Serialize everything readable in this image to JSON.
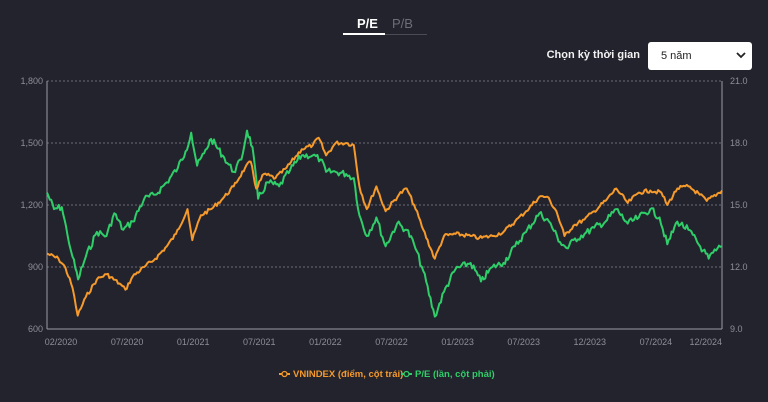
{
  "tabs": {
    "pe": "P/E",
    "pb": "P/B"
  },
  "period": {
    "label": "Chọn kỳ thời gian",
    "selected": "5 năm"
  },
  "colors": {
    "vnindex": "#f59a2b",
    "pe": "#2fce69",
    "grid": "#6a6b74",
    "background": "#22232d"
  },
  "chart_data": {
    "type": "line",
    "legend_position": "bottom",
    "grid": true,
    "x_ticks": [
      "02/2020",
      "07/2020",
      "01/2021",
      "07/2021",
      "01/2022",
      "07/2022",
      "01/2023",
      "07/2023",
      "12/2023",
      "07/2024",
      "12/2024"
    ],
    "y_left": {
      "range": [
        600,
        1800
      ],
      "ticks": [
        "600",
        "900",
        "1,200",
        "1,500",
        "1,800"
      ]
    },
    "y_right": {
      "range": [
        9.0,
        21.0
      ],
      "ticks": [
        "9.0",
        "12.0",
        "15.0",
        "18.0",
        "21.0"
      ]
    },
    "x_range": [
      "2020-01-01",
      "2024-12-31"
    ],
    "series": [
      {
        "name": "VNINDEX (điểm, cột trái)",
        "axis": "left",
        "points": [
          [
            "2020-01-01",
            965
          ],
          [
            "2020-02-01",
            940
          ],
          [
            "2020-02-20",
            895
          ],
          [
            "2020-03-10",
            800
          ],
          [
            "2020-03-24",
            665
          ],
          [
            "2020-04-15",
            755
          ],
          [
            "2020-05-15",
            840
          ],
          [
            "2020-06-10",
            865
          ],
          [
            "2020-07-15",
            820
          ],
          [
            "2020-07-31",
            790
          ],
          [
            "2020-08-20",
            855
          ],
          [
            "2020-09-20",
            900
          ],
          [
            "2020-10-20",
            940
          ],
          [
            "2020-11-20",
            1000
          ],
          [
            "2020-12-15",
            1060
          ],
          [
            "2021-01-15",
            1180
          ],
          [
            "2021-01-28",
            1030
          ],
          [
            "2021-02-20",
            1150
          ],
          [
            "2021-03-20",
            1180
          ],
          [
            "2021-04-20",
            1230
          ],
          [
            "2021-05-20",
            1290
          ],
          [
            "2021-06-20",
            1380
          ],
          [
            "2021-07-05",
            1410
          ],
          [
            "2021-07-20",
            1280
          ],
          [
            "2021-08-10",
            1350
          ],
          [
            "2021-09-10",
            1330
          ],
          [
            "2021-10-10",
            1380
          ],
          [
            "2021-11-20",
            1470
          ],
          [
            "2021-12-20",
            1490
          ],
          [
            "2022-01-05",
            1525
          ],
          [
            "2022-01-25",
            1440
          ],
          [
            "2022-02-20",
            1500
          ],
          [
            "2022-03-20",
            1500
          ],
          [
            "2022-04-10",
            1490
          ],
          [
            "2022-04-25",
            1290
          ],
          [
            "2022-05-15",
            1180
          ],
          [
            "2022-06-10",
            1290
          ],
          [
            "2022-07-05",
            1170
          ],
          [
            "2022-08-10",
            1250
          ],
          [
            "2022-08-31",
            1280
          ],
          [
            "2022-09-20",
            1200
          ],
          [
            "2022-10-15",
            1080
          ],
          [
            "2022-11-15",
            940
          ],
          [
            "2022-12-10",
            1050
          ],
          [
            "2023-01-10",
            1060
          ],
          [
            "2023-02-20",
            1050
          ],
          [
            "2023-03-15",
            1040
          ],
          [
            "2023-04-20",
            1050
          ],
          [
            "2023-05-20",
            1070
          ],
          [
            "2023-06-20",
            1120
          ],
          [
            "2023-07-20",
            1170
          ],
          [
            "2023-08-25",
            1240
          ],
          [
            "2023-09-15",
            1240
          ],
          [
            "2023-10-10",
            1170
          ],
          [
            "2023-11-01",
            1050
          ],
          [
            "2023-11-25",
            1100
          ],
          [
            "2023-12-25",
            1130
          ],
          [
            "2024-01-20",
            1170
          ],
          [
            "2024-02-20",
            1220
          ],
          [
            "2024-03-20",
            1280
          ],
          [
            "2024-04-20",
            1210
          ],
          [
            "2024-05-20",
            1260
          ],
          [
            "2024-06-20",
            1270
          ],
          [
            "2024-07-20",
            1260
          ],
          [
            "2024-08-05",
            1200
          ],
          [
            "2024-09-01",
            1280
          ],
          [
            "2024-10-01",
            1290
          ],
          [
            "2024-11-01",
            1250
          ],
          [
            "2024-11-20",
            1220
          ],
          [
            "2024-12-31",
            1270
          ]
        ]
      },
      {
        "name": "P/E (lần, cột phải)",
        "axis": "right",
        "points": [
          [
            "2020-01-01",
            15.6
          ],
          [
            "2020-01-20",
            14.8
          ],
          [
            "2020-02-10",
            14.9
          ],
          [
            "2020-02-25",
            13.6
          ],
          [
            "2020-03-10",
            12.5
          ],
          [
            "2020-03-25",
            11.4
          ],
          [
            "2020-04-15",
            12.5
          ],
          [
            "2020-05-15",
            13.7
          ],
          [
            "2020-06-10",
            13.5
          ],
          [
            "2020-07-01",
            14.6
          ],
          [
            "2020-07-25",
            13.8
          ],
          [
            "2020-08-20",
            14.2
          ],
          [
            "2020-09-20",
            15.3
          ],
          [
            "2020-10-20",
            15.5
          ],
          [
            "2020-11-20",
            16.1
          ],
          [
            "2020-12-20",
            16.8
          ],
          [
            "2021-01-10",
            17.6
          ],
          [
            "2021-01-25",
            18.5
          ],
          [
            "2021-02-10",
            16.9
          ],
          [
            "2021-03-01",
            17.5
          ],
          [
            "2021-03-20",
            18.2
          ],
          [
            "2021-04-20",
            17.4
          ],
          [
            "2021-05-20",
            16.6
          ],
          [
            "2021-06-10",
            17.2
          ],
          [
            "2021-06-25",
            18.6
          ],
          [
            "2021-07-10",
            17.8
          ],
          [
            "2021-07-25",
            15.3
          ],
          [
            "2021-08-20",
            16.1
          ],
          [
            "2021-09-20",
            15.9
          ],
          [
            "2021-10-20",
            16.7
          ],
          [
            "2021-11-20",
            17.4
          ],
          [
            "2021-12-20",
            17.4
          ],
          [
            "2022-01-10",
            17.2
          ],
          [
            "2022-01-25",
            16.6
          ],
          [
            "2022-02-20",
            16.6
          ],
          [
            "2022-03-20",
            16.5
          ],
          [
            "2022-04-10",
            16.3
          ],
          [
            "2022-04-25",
            14.5
          ],
          [
            "2022-05-15",
            13.5
          ],
          [
            "2022-06-10",
            14.4
          ],
          [
            "2022-07-05",
            13.0
          ],
          [
            "2022-08-05",
            14.1
          ],
          [
            "2022-08-31",
            13.8
          ],
          [
            "2022-09-20",
            13.1
          ],
          [
            "2022-10-15",
            11.8
          ],
          [
            "2022-11-15",
            9.6
          ],
          [
            "2022-12-10",
            10.8
          ],
          [
            "2023-01-10",
            11.9
          ],
          [
            "2023-02-20",
            12.2
          ],
          [
            "2023-03-20",
            11.3
          ],
          [
            "2023-04-20",
            12.0
          ],
          [
            "2023-05-20",
            12.2
          ],
          [
            "2023-06-20",
            13.0
          ],
          [
            "2023-07-20",
            13.7
          ],
          [
            "2023-08-25",
            14.6
          ],
          [
            "2023-09-20",
            14.2
          ],
          [
            "2023-10-20",
            13.2
          ],
          [
            "2023-11-10",
            12.9
          ],
          [
            "2023-11-25",
            13.3
          ],
          [
            "2023-12-25",
            13.6
          ],
          [
            "2024-01-20",
            13.9
          ],
          [
            "2024-02-20",
            14.2
          ],
          [
            "2024-03-20",
            14.8
          ],
          [
            "2024-04-20",
            14.1
          ],
          [
            "2024-05-20",
            14.4
          ],
          [
            "2024-06-20",
            14.8
          ],
          [
            "2024-07-15",
            14.4
          ],
          [
            "2024-08-05",
            13.1
          ],
          [
            "2024-09-01",
            14.2
          ],
          [
            "2024-10-01",
            13.8
          ],
          [
            "2024-11-10",
            12.8
          ],
          [
            "2024-11-25",
            12.4
          ],
          [
            "2024-12-15",
            12.8
          ],
          [
            "2024-12-31",
            13.0
          ]
        ]
      }
    ]
  }
}
